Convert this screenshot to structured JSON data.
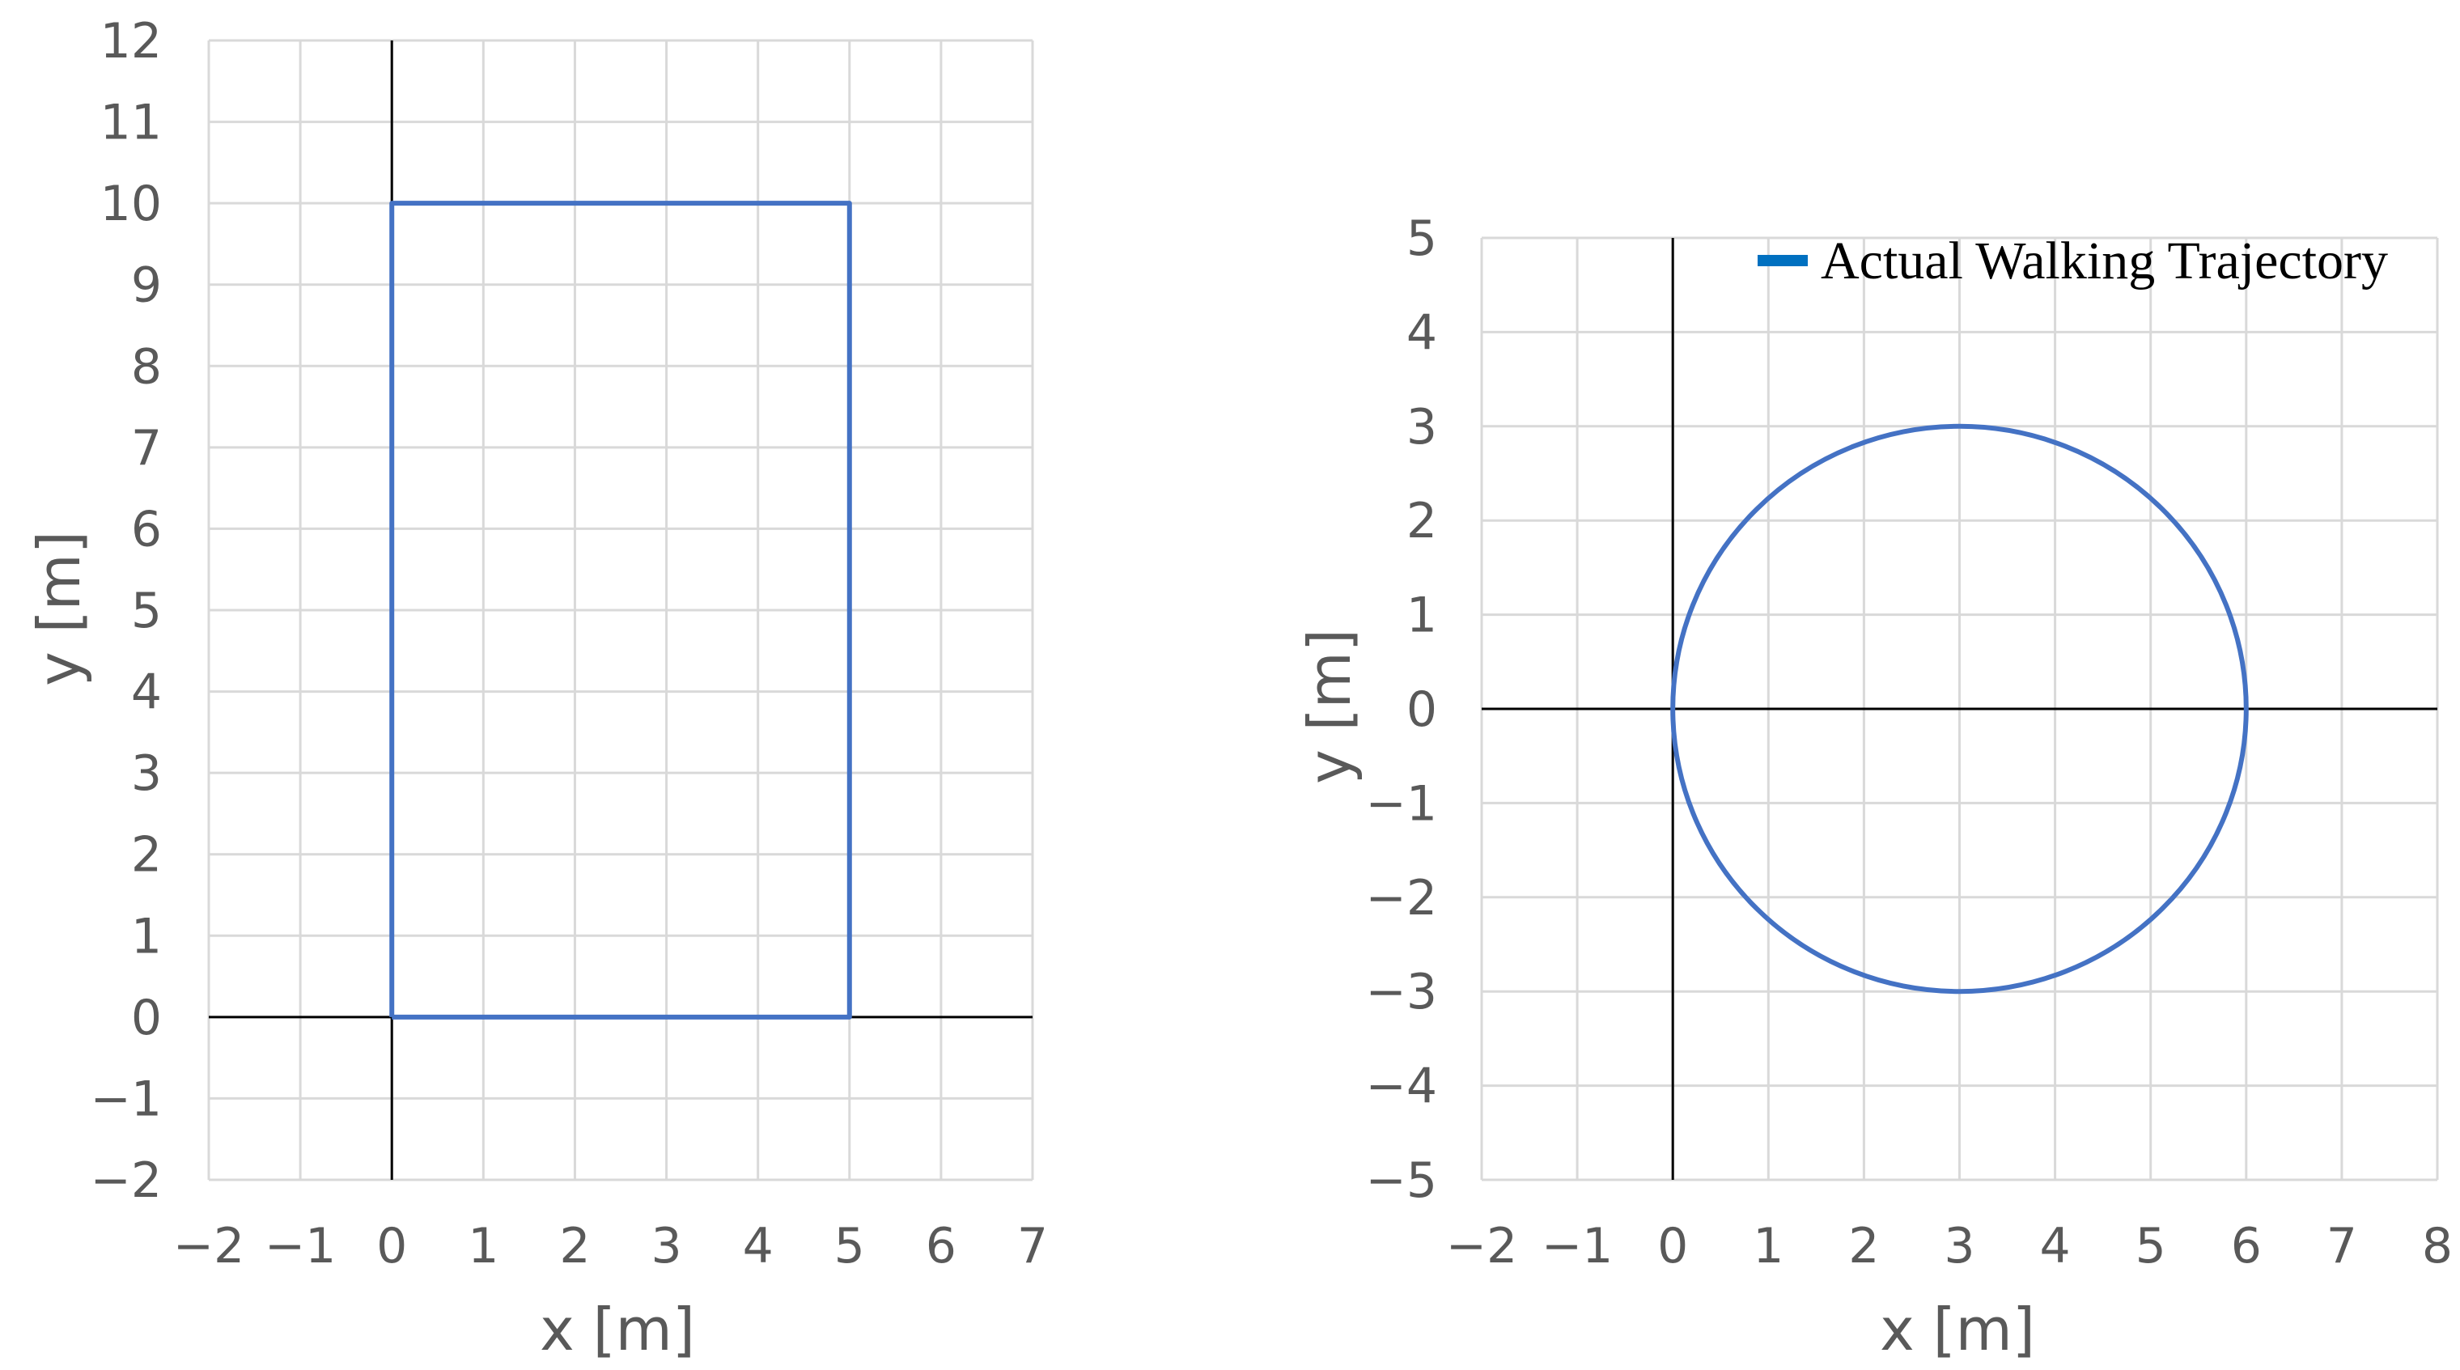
{
  "chart_data": [
    {
      "type": "line",
      "title": "",
      "xlabel": "x [m]",
      "ylabel": "y [m]",
      "xlim": [
        -2,
        7
      ],
      "ylim": [
        -2,
        12
      ],
      "xticks": [
        "−2",
        "−1",
        "0",
        "1",
        "2",
        "3",
        "4",
        "5",
        "6",
        "7"
      ],
      "yticks": [
        "−2",
        "−1",
        "0",
        "1",
        "2",
        "3",
        "4",
        "5",
        "6",
        "7",
        "8",
        "9",
        "10",
        "11",
        "12"
      ],
      "grid": true,
      "legend": null,
      "series": [
        {
          "color": "#4472c4",
          "x": [
            0,
            0,
            5,
            5,
            0
          ],
          "y": [
            0,
            10,
            10,
            0,
            0
          ]
        }
      ]
    },
    {
      "type": "line",
      "title": "",
      "xlabel": "x [m]",
      "ylabel": "y [m]",
      "xlim": [
        -2,
        8
      ],
      "ylim": [
        -5,
        5
      ],
      "xticks": [
        "−2",
        "−1",
        "0",
        "1",
        "2",
        "3",
        "4",
        "5",
        "6",
        "7",
        "8"
      ],
      "yticks": [
        "−5",
        "−4",
        "−3",
        "−2",
        "−1",
        "0",
        "1",
        "2",
        "3",
        "4",
        "5"
      ],
      "grid": true,
      "legend": "top-right",
      "series": [
        {
          "name": "Actual Walking Trajectory",
          "color": "#4472c4",
          "shape": "circle",
          "center": [
            3,
            0
          ],
          "radius": 3
        }
      ]
    }
  ]
}
